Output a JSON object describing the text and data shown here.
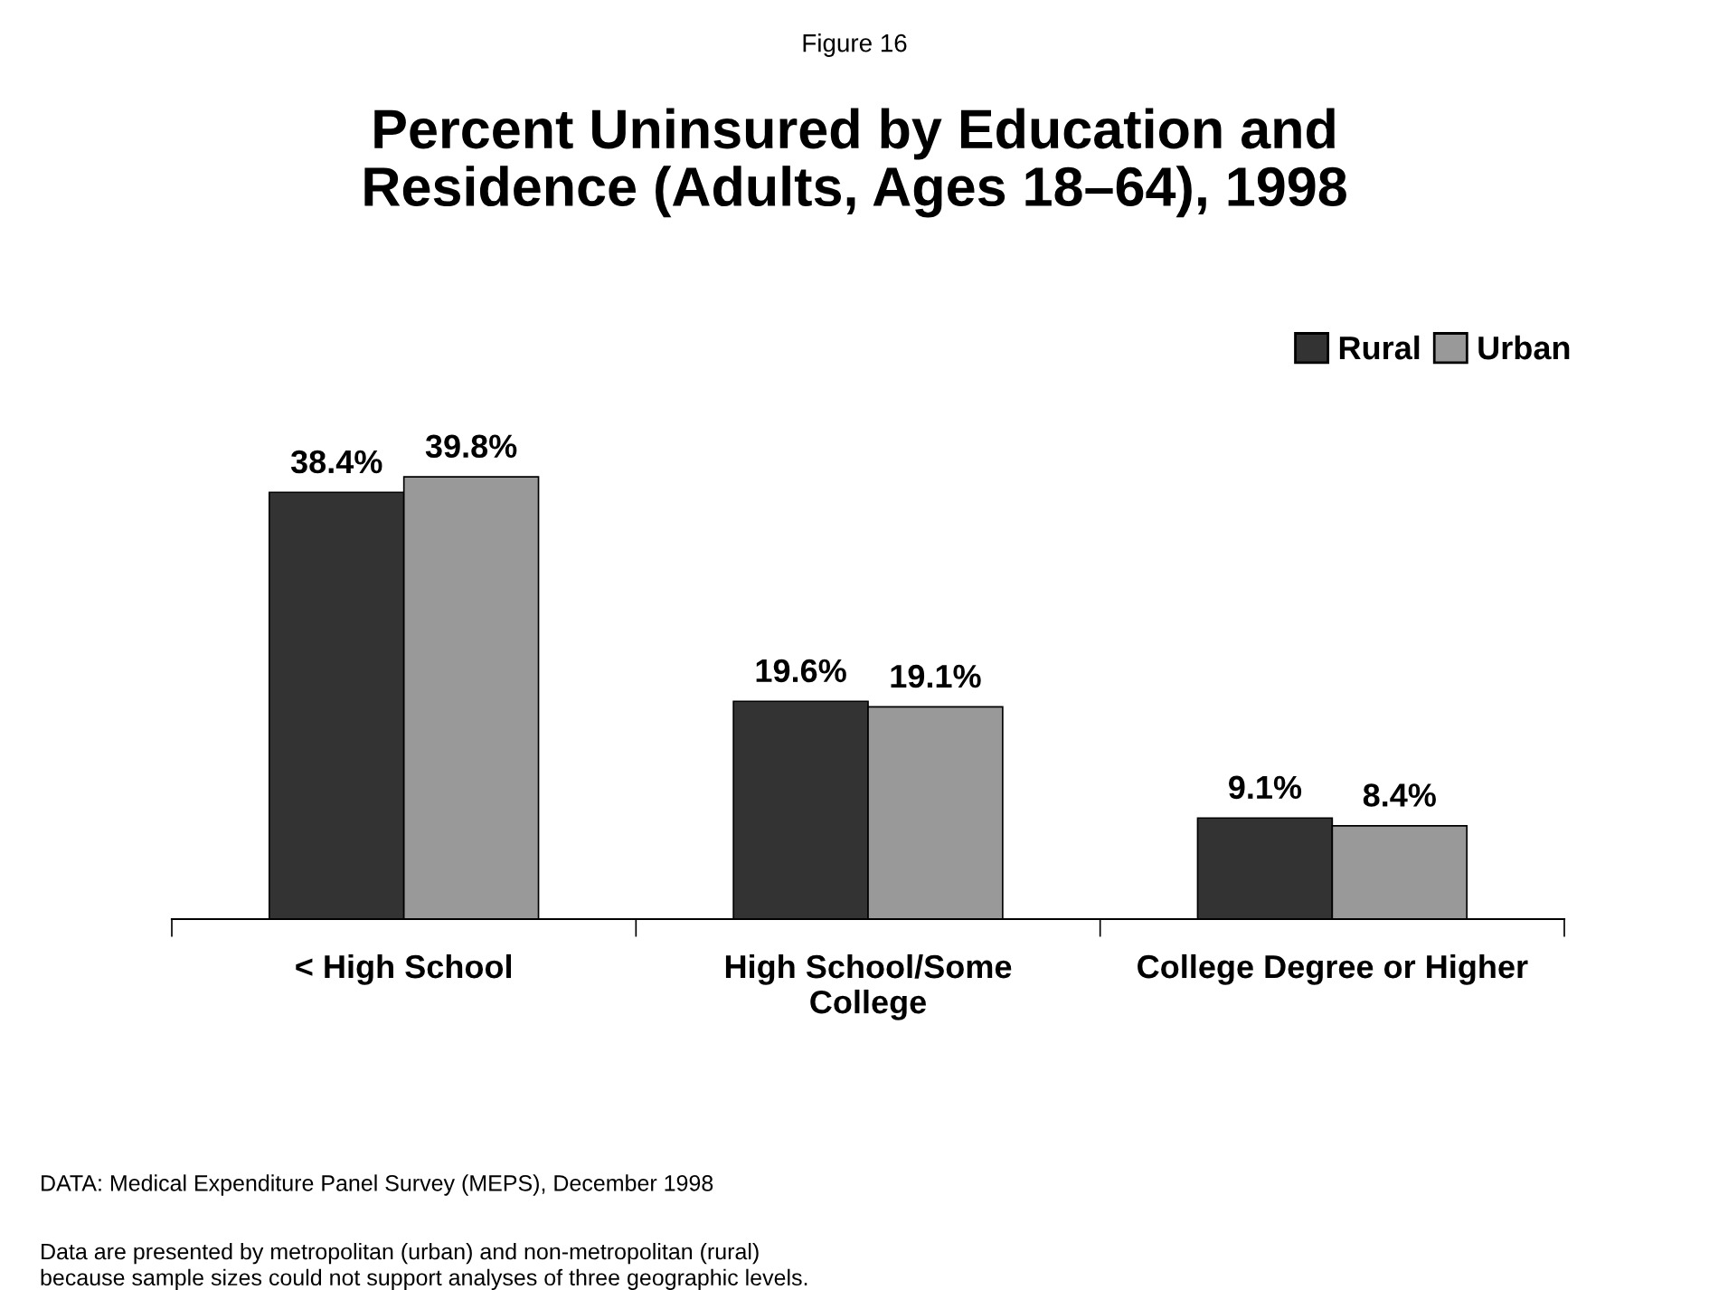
{
  "chart_data": {
    "type": "bar",
    "subtitle": "Figure 16",
    "title": "Percent Uninsured by Education and\nResidence (Adults, Ages 18–64), 1998",
    "categories": [
      "< High School",
      "High School/Some\nCollege",
      "College Degree or Higher"
    ],
    "series": [
      {
        "name": "Rural",
        "color": "#333333",
        "values": [
          38.4,
          19.6,
          9.1
        ],
        "value_labels": [
          "38.4%",
          "19.6%",
          "9.1%"
        ]
      },
      {
        "name": "Urban",
        "color": "#999999",
        "values": [
          39.8,
          19.1,
          8.4
        ],
        "value_labels": [
          "39.8%",
          "19.1%",
          "8.4%"
        ]
      }
    ],
    "legend": "top right",
    "grid": false,
    "annotations": [
      "DATA: Medical Expenditure Panel Survey (MEPS), December 1998",
      "Data are presented by metropolitan (urban) and non-metropolitan (rural)\nbecause sample sizes could not support analyses of three geographic levels."
    ]
  }
}
